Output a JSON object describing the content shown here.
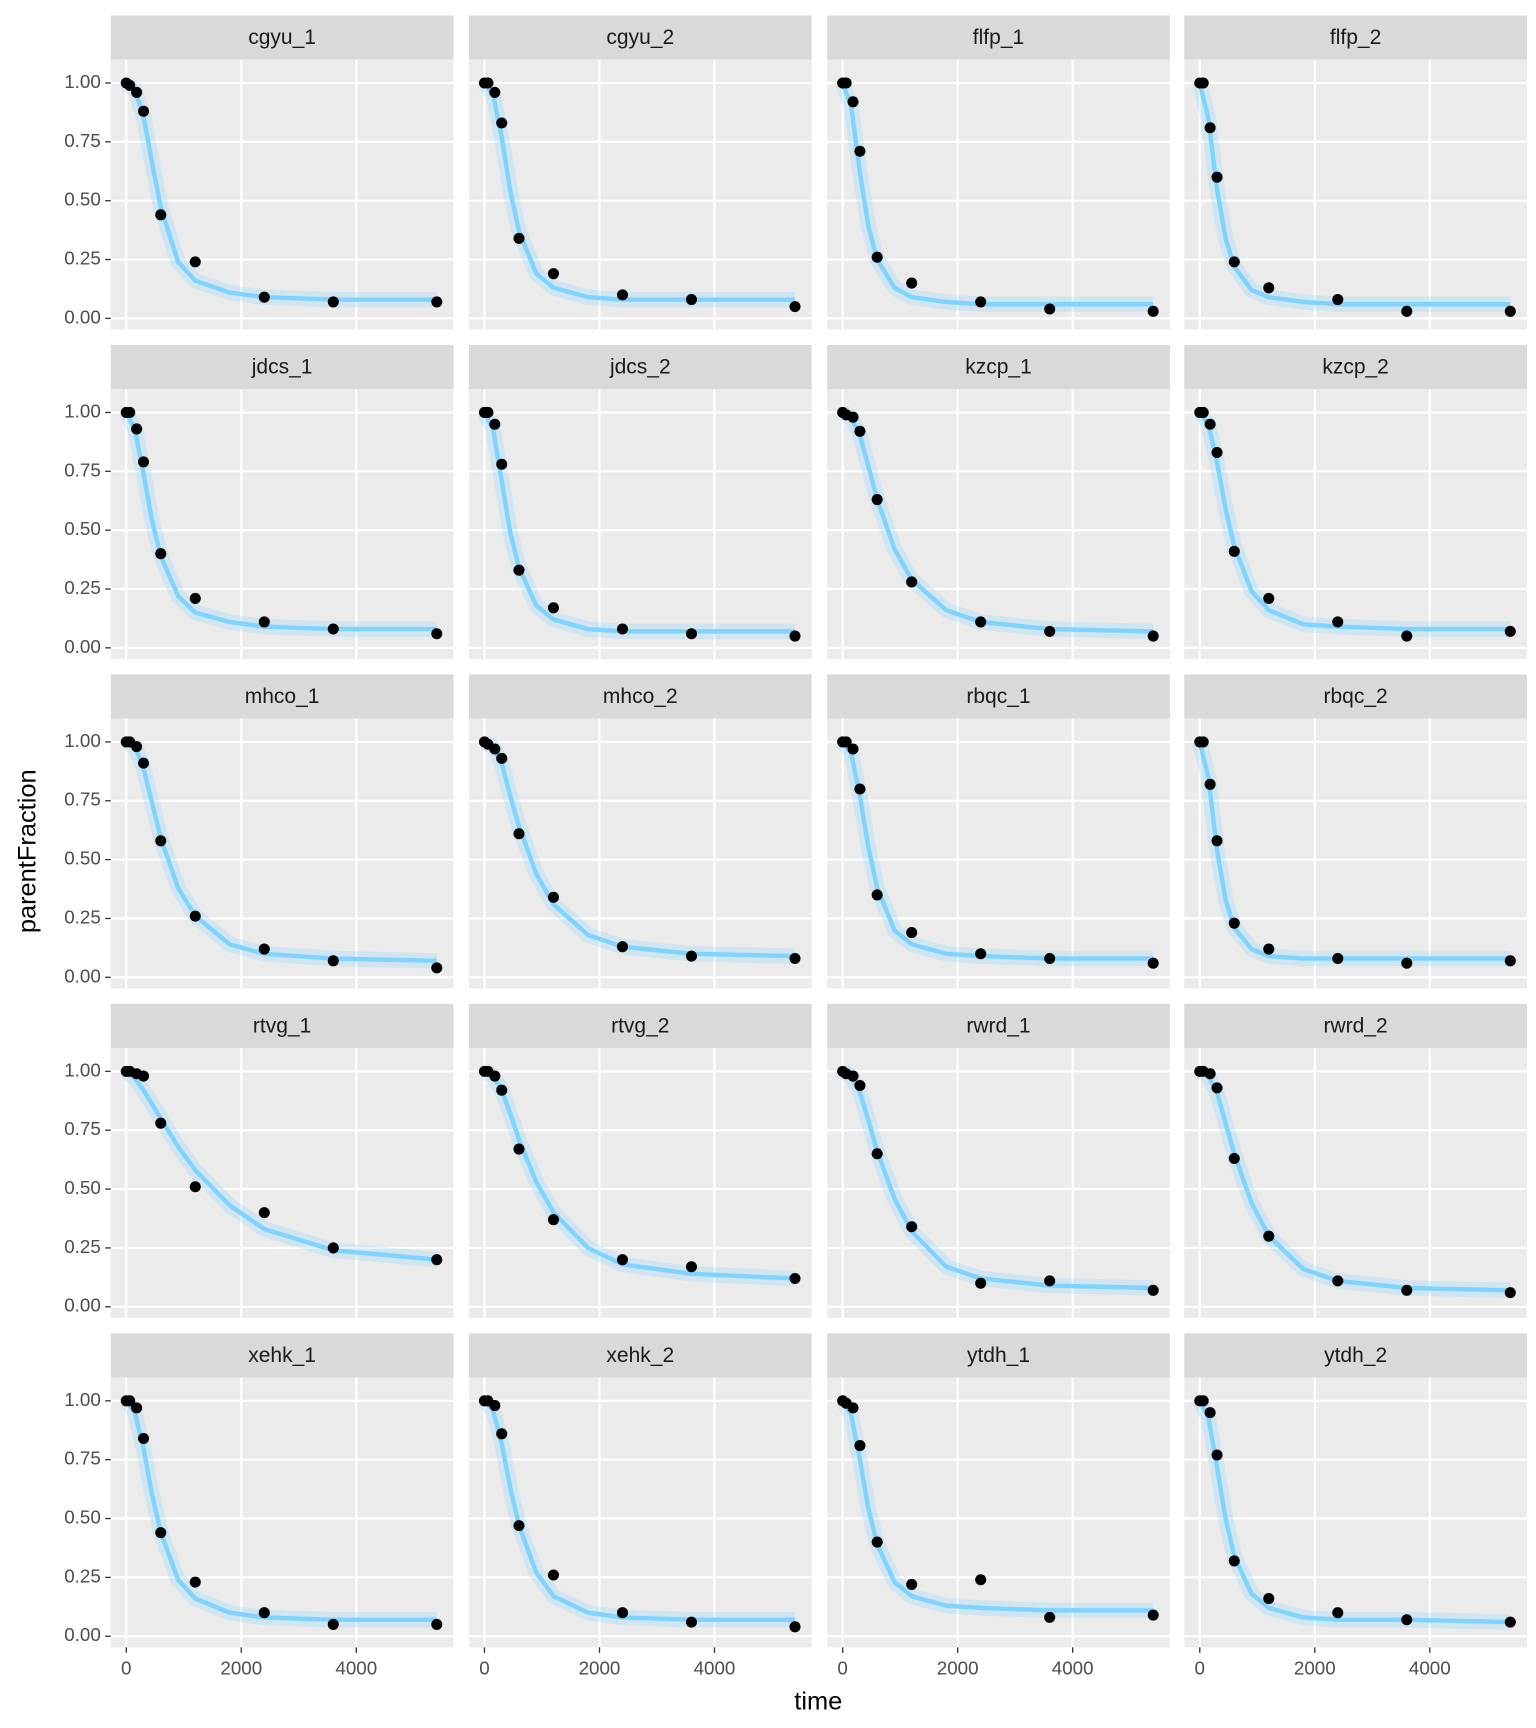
{
  "chart_data": {
    "type": "scatter",
    "xlabel": "time",
    "ylabel": "parentFraction",
    "xlim": [
      -270,
      5690
    ],
    "ylim": [
      -0.047,
      1.099
    ],
    "xticks": [
      0,
      2000,
      4000
    ],
    "yticks": [
      {
        "value": 0,
        "label": "0.00"
      },
      {
        "value": 0.25,
        "label": "0.25"
      },
      {
        "value": 0.5,
        "label": "0.50"
      },
      {
        "value": 0.75,
        "label": "0.75"
      },
      {
        "value": 1,
        "label": "1.00"
      }
    ],
    "grid": true,
    "point_color": "#000000",
    "fit_color": "#7fd4ff",
    "x": [
      0,
      60,
      180,
      300,
      600,
      1200,
      2400,
      3600,
      5400
    ],
    "fit_x": [
      0,
      150,
      300,
      450,
      600,
      900,
      1200,
      1800,
      2400,
      3600,
      5400
    ],
    "facets": [
      {
        "title": "cgyu_1",
        "values": [
          1.0,
          0.99,
          0.96,
          0.88,
          0.44,
          0.24,
          0.09,
          0.07,
          0.07
        ],
        "fit": [
          1.0,
          0.97,
          0.86,
          0.66,
          0.47,
          0.24,
          0.16,
          0.11,
          0.09,
          0.08,
          0.08
        ]
      },
      {
        "title": "cgyu_2",
        "values": [
          1.0,
          1.0,
          0.96,
          0.83,
          0.34,
          0.19,
          0.1,
          0.08,
          0.05
        ],
        "fit": [
          1.0,
          0.95,
          0.77,
          0.54,
          0.37,
          0.19,
          0.13,
          0.09,
          0.08,
          0.08,
          0.08
        ]
      },
      {
        "title": "flfp_1",
        "values": [
          1.0,
          1.0,
          0.92,
          0.71,
          0.26,
          0.15,
          0.07,
          0.04,
          0.03
        ],
        "fit": [
          1.0,
          0.9,
          0.62,
          0.39,
          0.25,
          0.13,
          0.09,
          0.07,
          0.06,
          0.06,
          0.06
        ]
      },
      {
        "title": "flfp_2",
        "values": [
          1.0,
          1.0,
          0.81,
          0.6,
          0.24,
          0.13,
          0.08,
          0.03,
          0.03
        ],
        "fit": [
          1.0,
          0.85,
          0.55,
          0.34,
          0.22,
          0.12,
          0.09,
          0.07,
          0.06,
          0.06,
          0.06
        ]
      },
      {
        "title": "jdcs_1",
        "values": [
          1.0,
          1.0,
          0.93,
          0.79,
          0.4,
          0.21,
          0.11,
          0.08,
          0.06
        ],
        "fit": [
          1.0,
          0.93,
          0.74,
          0.54,
          0.39,
          0.22,
          0.15,
          0.11,
          0.09,
          0.08,
          0.08
        ]
      },
      {
        "title": "jdcs_2",
        "values": [
          1.0,
          1.0,
          0.95,
          0.78,
          0.33,
          0.17,
          0.08,
          0.06,
          0.05
        ],
        "fit": [
          1.0,
          0.93,
          0.71,
          0.49,
          0.34,
          0.18,
          0.12,
          0.08,
          0.07,
          0.07,
          0.07
        ]
      },
      {
        "title": "kzcp_1",
        "values": [
          1.0,
          0.99,
          0.98,
          0.92,
          0.63,
          0.28,
          0.11,
          0.07,
          0.05
        ],
        "fit": [
          1.0,
          0.98,
          0.9,
          0.77,
          0.63,
          0.42,
          0.29,
          0.16,
          0.11,
          0.08,
          0.07
        ]
      },
      {
        "title": "kzcp_2",
        "values": [
          1.0,
          1.0,
          0.95,
          0.83,
          0.41,
          0.21,
          0.11,
          0.05,
          0.07
        ],
        "fit": [
          1.0,
          0.95,
          0.79,
          0.59,
          0.43,
          0.24,
          0.16,
          0.1,
          0.09,
          0.08,
          0.08
        ]
      },
      {
        "title": "mhco_1",
        "values": [
          1.0,
          1.0,
          0.98,
          0.91,
          0.58,
          0.26,
          0.12,
          0.07,
          0.04
        ],
        "fit": [
          1.0,
          0.98,
          0.89,
          0.74,
          0.59,
          0.38,
          0.26,
          0.14,
          0.1,
          0.08,
          0.07
        ]
      },
      {
        "title": "mhco_2",
        "values": [
          1.0,
          0.99,
          0.97,
          0.93,
          0.61,
          0.34,
          0.13,
          0.09,
          0.08
        ],
        "fit": [
          1.0,
          0.98,
          0.91,
          0.77,
          0.64,
          0.44,
          0.31,
          0.18,
          0.13,
          0.1,
          0.09
        ]
      },
      {
        "title": "rbqc_1",
        "values": [
          1.0,
          1.0,
          0.97,
          0.8,
          0.35,
          0.19,
          0.1,
          0.08,
          0.06
        ],
        "fit": [
          1.0,
          0.95,
          0.77,
          0.55,
          0.38,
          0.2,
          0.14,
          0.1,
          0.09,
          0.08,
          0.08
        ]
      },
      {
        "title": "rbqc_2",
        "values": [
          1.0,
          1.0,
          0.82,
          0.58,
          0.23,
          0.12,
          0.08,
          0.06,
          0.07
        ],
        "fit": [
          1.0,
          0.85,
          0.54,
          0.33,
          0.21,
          0.12,
          0.09,
          0.08,
          0.08,
          0.08,
          0.08
        ]
      },
      {
        "title": "rtvg_1",
        "values": [
          1.0,
          1.0,
          0.99,
          0.98,
          0.78,
          0.51,
          0.4,
          0.25,
          0.2
        ],
        "fit": [
          1.0,
          0.97,
          0.92,
          0.86,
          0.8,
          0.68,
          0.58,
          0.43,
          0.33,
          0.24,
          0.2
        ]
      },
      {
        "title": "rtvg_2",
        "values": [
          1.0,
          1.0,
          0.98,
          0.92,
          0.67,
          0.37,
          0.2,
          0.17,
          0.12
        ],
        "fit": [
          1.0,
          0.98,
          0.92,
          0.82,
          0.71,
          0.53,
          0.4,
          0.25,
          0.18,
          0.14,
          0.12
        ]
      },
      {
        "title": "rwrd_1",
        "values": [
          1.0,
          0.99,
          0.98,
          0.94,
          0.65,
          0.34,
          0.1,
          0.11,
          0.07
        ],
        "fit": [
          1.0,
          0.98,
          0.91,
          0.79,
          0.66,
          0.46,
          0.32,
          0.17,
          0.12,
          0.09,
          0.08
        ]
      },
      {
        "title": "rwrd_2",
        "values": [
          1.0,
          1.0,
          0.99,
          0.93,
          0.63,
          0.3,
          0.11,
          0.07,
          0.06
        ],
        "fit": [
          1.0,
          0.98,
          0.91,
          0.78,
          0.65,
          0.44,
          0.3,
          0.16,
          0.11,
          0.08,
          0.07
        ]
      },
      {
        "title": "xehk_1",
        "values": [
          1.0,
          1.0,
          0.97,
          0.84,
          0.44,
          0.23,
          0.1,
          0.05,
          0.05
        ],
        "fit": [
          1.0,
          0.95,
          0.8,
          0.6,
          0.44,
          0.24,
          0.16,
          0.1,
          0.08,
          0.07,
          0.07
        ]
      },
      {
        "title": "xehk_2",
        "values": [
          1.0,
          1.0,
          0.98,
          0.86,
          0.47,
          0.26,
          0.1,
          0.06,
          0.04
        ],
        "fit": [
          1.0,
          0.96,
          0.82,
          0.63,
          0.47,
          0.27,
          0.17,
          0.1,
          0.08,
          0.07,
          0.07
        ]
      },
      {
        "title": "ytdh_1",
        "values": [
          1.0,
          0.99,
          0.97,
          0.81,
          0.4,
          0.22,
          0.24,
          0.08,
          0.09
        ],
        "fit": [
          1.0,
          0.94,
          0.75,
          0.54,
          0.39,
          0.23,
          0.17,
          0.13,
          0.12,
          0.11,
          0.11
        ]
      },
      {
        "title": "ytdh_2",
        "values": [
          1.0,
          1.0,
          0.95,
          0.77,
          0.32,
          0.16,
          0.1,
          0.07,
          0.06
        ],
        "fit": [
          1.0,
          0.93,
          0.72,
          0.5,
          0.34,
          0.18,
          0.12,
          0.08,
          0.07,
          0.07,
          0.06
        ]
      }
    ]
  }
}
